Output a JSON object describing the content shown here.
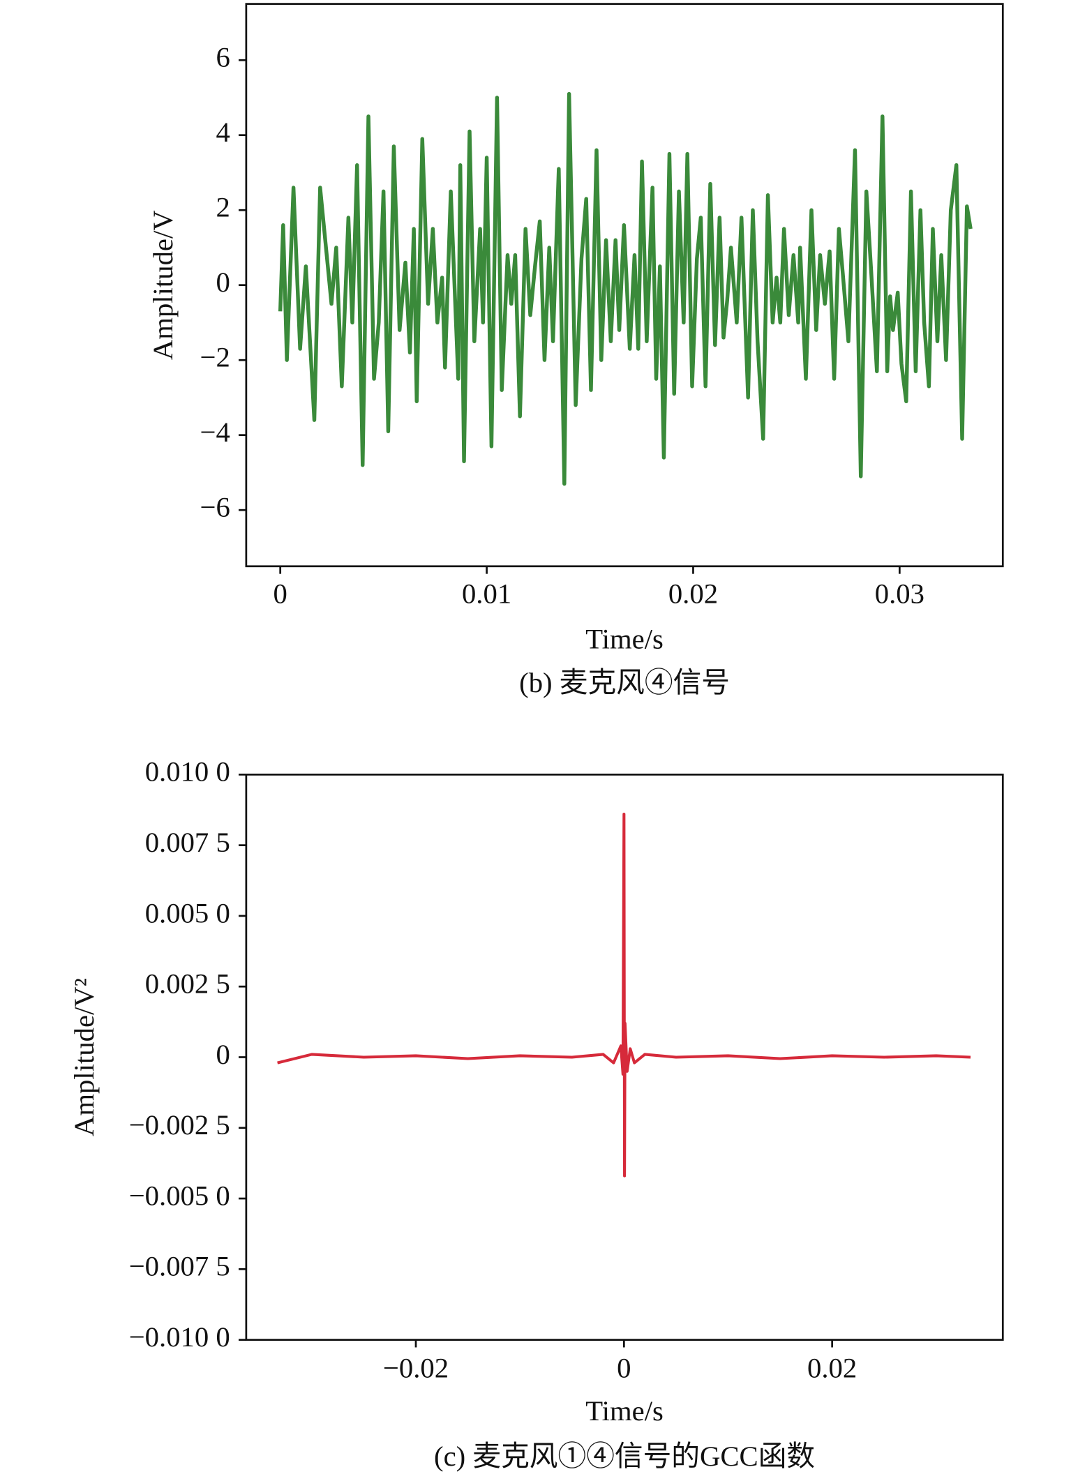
{
  "chart_data": [
    {
      "type": "line",
      "xlabel": "Time/s",
      "ylabel": "Amplitude/V",
      "caption": "(b) 麦克风④信号",
      "xlim": [
        -0.00165,
        0.035
      ],
      "ylim": [
        -7.5,
        7.5
      ],
      "xticks": [
        0,
        0.01,
        0.02,
        0.03
      ],
      "yticks": [
        {
          "value": -6,
          "label": "−6"
        },
        {
          "value": -4,
          "label": "−4"
        },
        {
          "value": -2,
          "label": "−2"
        },
        0,
        2,
        4,
        6
      ],
      "series": [
        {
          "color": "#3a8a3a",
          "x": [
            0,
            0.00014,
            0.00032,
            0.00064,
            0.00096,
            0.00124,
            0.00165,
            0.00193,
            0.00225,
            0.00248,
            0.00271,
            0.00298,
            0.0033,
            0.00349,
            0.00372,
            0.00399,
            0.00427,
            0.00454,
            0.00477,
            0.005,
            0.00523,
            0.0055,
            0.00578,
            0.00606,
            0.00628,
            0.00647,
            0.00661,
            0.00688,
            0.00716,
            0.00739,
            0.00761,
            0.00784,
            0.00798,
            0.00826,
            0.00862,
            0.00872,
            0.0089,
            0.00917,
            0.0094,
            0.00968,
            0.00982,
            0.01,
            0.01023,
            0.0105,
            0.01073,
            0.01101,
            0.01119,
            0.01138,
            0.01161,
            0.01188,
            0.01211,
            0.01234,
            0.01257,
            0.0128,
            0.01303,
            0.01321,
            0.01349,
            0.01376,
            0.01399,
            0.01431,
            0.01459,
            0.01482,
            0.01505,
            0.01532,
            0.01555,
            0.01578,
            0.01601,
            0.01624,
            0.01642,
            0.01665,
            0.01693,
            0.01716,
            0.01734,
            0.01752,
            0.01775,
            0.01803,
            0.01821,
            0.01839,
            0.01858,
            0.01885,
            0.01908,
            0.01931,
            0.01954,
            0.01972,
            0.01995,
            0.02018,
            0.02037,
            0.0206,
            0.02083,
            0.02106,
            0.02128,
            0.02147,
            0.02165,
            0.02183,
            0.02211,
            0.02234,
            0.02266,
            0.02289,
            0.02312,
            0.02339,
            0.02362,
            0.02385,
            0.02404,
            0.02422,
            0.0244,
            0.02463,
            0.02486,
            0.02509,
            0.02518,
            0.02546,
            0.02573,
            0.02596,
            0.02615,
            0.02638,
            0.02661,
            0.02683,
            0.02706,
            0.02725,
            0.02752,
            0.02784,
            0.02812,
            0.02839,
            0.02862,
            0.0289,
            0.02917,
            0.0294,
            0.02954,
            0.02968,
            0.02991,
            0.03009,
            0.03032,
            0.03055,
            0.03078,
            0.03101,
            0.03119,
            0.03142,
            0.03161,
            0.03183,
            0.03202,
            0.03225,
            0.03248,
            0.03275,
            0.03303,
            0.03326,
            0.03344
          ],
          "values": [
            -0.7,
            1.6,
            -2.0,
            2.6,
            -1.7,
            0.5,
            -3.6,
            2.6,
            0.8,
            -0.5,
            1.0,
            -2.7,
            1.8,
            -1.0,
            3.2,
            -4.8,
            4.5,
            -2.5,
            -1.0,
            2.5,
            -3.9,
            3.7,
            -1.2,
            0.6,
            -1.8,
            1.5,
            -3.1,
            3.9,
            -0.5,
            1.5,
            -1.0,
            0.2,
            -2.2,
            2.5,
            -2.5,
            3.2,
            -4.7,
            4.1,
            -1.5,
            1.5,
            -1.0,
            3.4,
            -4.3,
            5.0,
            -2.8,
            0.8,
            -0.5,
            0.8,
            -3.5,
            1.5,
            -0.8,
            0.5,
            1.7,
            -2.0,
            1.0,
            -1.5,
            3.1,
            -5.3,
            5.1,
            -3.2,
            0.7,
            2.3,
            -2.8,
            3.6,
            -2.0,
            1.2,
            -1.5,
            1.2,
            -1.2,
            1.6,
            -1.7,
            0.8,
            -1.7,
            3.3,
            -1.5,
            2.6,
            -2.5,
            0.5,
            -4.6,
            3.5,
            -2.9,
            2.5,
            -1.0,
            3.5,
            -2.7,
            0.7,
            1.8,
            -2.7,
            2.7,
            -1.6,
            1.8,
            -1.4,
            -0.4,
            1.0,
            -1.0,
            1.8,
            -3.0,
            2.0,
            -1.5,
            -4.1,
            2.4,
            -1.0,
            0.2,
            -1.0,
            1.5,
            -0.8,
            0.8,
            -1.0,
            1.0,
            -2.5,
            2.0,
            -1.2,
            0.8,
            -0.5,
            0.9,
            -2.5,
            1.5,
            0.3,
            -1.5,
            3.6,
            -5.1,
            2.5,
            0.4,
            -2.3,
            4.5,
            -2.3,
            -0.3,
            -1.2,
            -0.2,
            -2.1,
            -3.1,
            2.5,
            -2.3,
            2.0,
            -1.0,
            -2.7,
            1.5,
            -1.5,
            0.8,
            -2.0,
            2.0,
            3.2,
            -4.1,
            2.1,
            1.5
          ]
        }
      ]
    },
    {
      "type": "line",
      "xlabel": "Time/s",
      "ylabel": "Amplitude/V²",
      "caption": "(c) 麦克风①④信号的GCC函数",
      "xlim": [
        -0.0363,
        0.0364
      ],
      "ylim": [
        -0.01,
        0.01
      ],
      "xticks": [
        {
          "value": -0.02,
          "label": "−0.02"
        },
        0,
        0.02
      ],
      "yticks": [
        {
          "value": -0.01,
          "label": "−0.010 0"
        },
        {
          "value": -0.0075,
          "label": "−0.007 5"
        },
        {
          "value": -0.005,
          "label": "−0.005 0"
        },
        {
          "value": -0.0025,
          "label": "−0.002 5"
        },
        0,
        {
          "value": 0.0025,
          "label": "0.002 5"
        },
        {
          "value": 0.005,
          "label": "0.005 0"
        },
        {
          "value": 0.0075,
          "label": "0.007 5"
        },
        {
          "value": 0.01,
          "label": "0.010 0"
        }
      ],
      "series": [
        {
          "color": "#d62a3a",
          "x": [
            -0.0333,
            -0.03,
            -0.025,
            -0.02,
            -0.015,
            -0.01,
            -0.005,
            -0.002,
            -0.001,
            -0.0003,
            -0.0001,
            0,
            5e-05,
            0.0001,
            0.0003,
            0.0006,
            0.001,
            0.002,
            0.005,
            0.01,
            0.015,
            0.02,
            0.025,
            0.03,
            0.0333
          ],
          "values": [
            -0.0002,
            0.0001,
            0,
            5e-05,
            -5e-05,
            5e-05,
            0,
            0.0001,
            -0.0002,
            0.0004,
            -0.0006,
            0.0086,
            -0.0042,
            0.0012,
            -0.0005,
            0.0003,
            -0.0002,
            0.0001,
            0,
            5e-05,
            -5e-05,
            5e-05,
            0,
            5e-05,
            0
          ]
        }
      ]
    }
  ]
}
